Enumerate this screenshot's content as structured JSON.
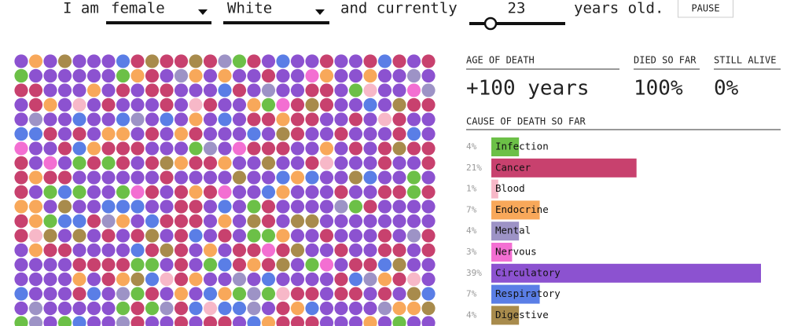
{
  "controls": {
    "prefix": "I am",
    "sex": "female",
    "race": "White",
    "middle": "and currently",
    "age": "23",
    "suffix": "years old.",
    "button": "PAUSE"
  },
  "stats": {
    "age_of_death": {
      "label": "AGE OF DEATH",
      "value": "+100 years"
    },
    "died_so_far": {
      "label": "DIED SO FAR",
      "value": "100%"
    },
    "still_alive": {
      "label": "STILL ALIVE",
      "value": "0%"
    }
  },
  "chart_data": {
    "type": "bar",
    "orientation": "horizontal",
    "title": "CAUSE OF DEATH SO FAR",
    "categories": [
      "Infection",
      "Cancer",
      "Blood",
      "Endocrine",
      "Mental",
      "Nervous",
      "Circulatory",
      "Respiratory",
      "Digestive"
    ],
    "values": [
      4,
      21,
      1,
      7,
      4,
      3,
      39,
      7,
      4
    ],
    "value_labels": [
      "4%",
      "21%",
      "1%",
      "7%",
      "4%",
      "3%",
      "39%",
      "7%",
      "4%"
    ],
    "colors": [
      "#6cc047",
      "#c8416e",
      "#f7b8c8",
      "#f8a85a",
      "#9d93c6",
      "#f36fd2",
      "#8c52d0",
      "#5a7ee6",
      "#a88b4c"
    ]
  }
}
